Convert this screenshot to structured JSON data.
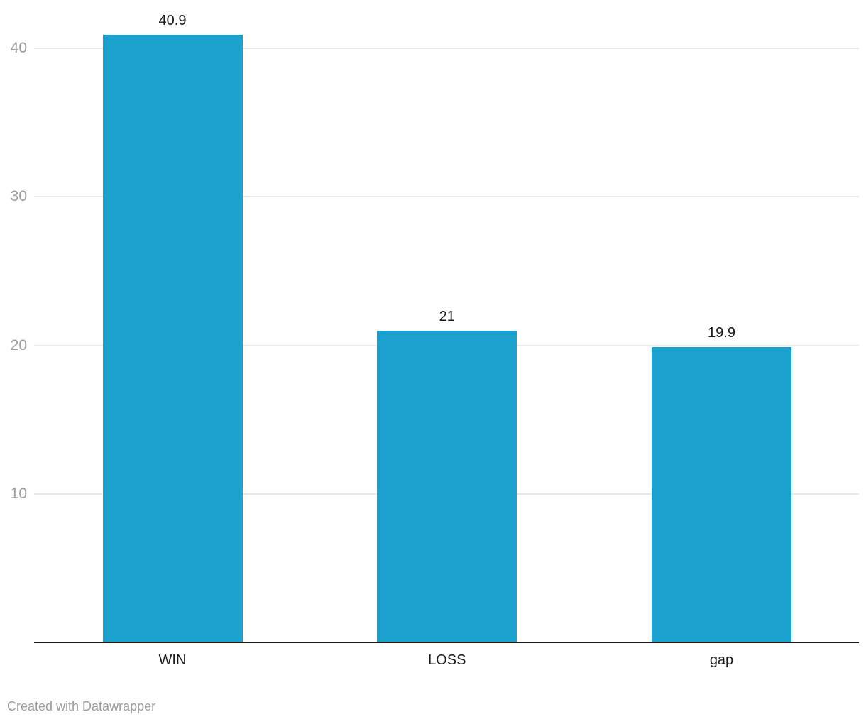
{
  "footer": {
    "attribution": "Created with Datawrapper"
  },
  "chart_data": {
    "type": "bar",
    "title": "",
    "xlabel": "",
    "ylabel": "",
    "categories": [
      "WIN",
      "LOSS",
      "gap"
    ],
    "values": [
      40.9,
      21,
      19.9
    ],
    "value_labels": [
      "40.9",
      "21",
      "19.9"
    ],
    "y_ticks": [
      10,
      20,
      30,
      40
    ],
    "ylim": [
      0,
      43
    ],
    "grid": "horizontal",
    "legend": "none",
    "colors": {
      "bar": "#1aa1ce",
      "gridline": "#e8e8e8",
      "tick_text": "#9d9d9d",
      "label_text": "#1a1a1a",
      "baseline": "#161616",
      "attribution_text": "#9b9b9b"
    }
  }
}
